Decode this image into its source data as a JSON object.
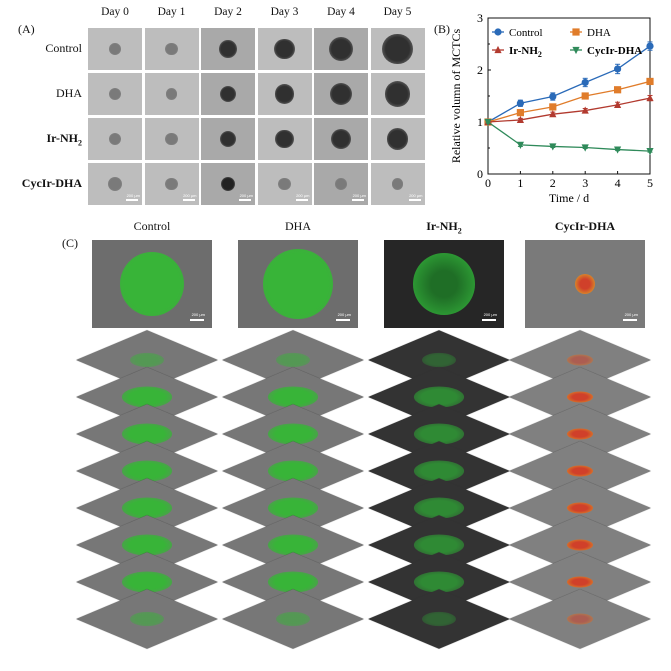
{
  "panel_a": {
    "label": "(A)",
    "days": [
      "Day 0",
      "Day 1",
      "Day 2",
      "Day 3",
      "Day 4",
      "Day 5"
    ],
    "rows": [
      "Control",
      "DHA",
      "Ir-NH",
      "CycIr-DHA"
    ],
    "row_sub": [
      "",
      "",
      "2",
      ""
    ],
    "scale_bar": "200 μm",
    "sizes": [
      [
        0.28,
        0.3,
        0.42,
        0.48,
        0.58,
        0.72
      ],
      [
        0.3,
        0.28,
        0.4,
        0.46,
        0.54,
        0.6
      ],
      [
        0.3,
        0.3,
        0.4,
        0.44,
        0.48,
        0.52
      ],
      [
        0.34,
        0.3,
        0.34,
        0.3,
        0.28,
        0.28
      ]
    ]
  },
  "panel_b": {
    "label": "(B)"
  },
  "chart_data": {
    "type": "line",
    "xlabel": "Time / d",
    "ylabel": "Relative volumn of MCTCs",
    "xlim": [
      0,
      5
    ],
    "ylim": [
      0,
      3
    ],
    "xticks": [
      "0",
      "1",
      "2",
      "3",
      "4",
      "5"
    ],
    "yticks": [
      "0",
      "1",
      "2",
      "3"
    ],
    "legend": "top-left",
    "x": [
      0,
      1,
      2,
      3,
      4,
      5
    ],
    "series": [
      {
        "name": "Control",
        "name_sub": "",
        "bold": false,
        "color": "#2a6ab8",
        "marker": "circle",
        "values": [
          1.0,
          1.36,
          1.49,
          1.76,
          2.02,
          2.46
        ],
        "err": [
          0.03,
          0.06,
          0.07,
          0.08,
          0.09,
          0.08
        ]
      },
      {
        "name": "DHA",
        "name_sub": "",
        "bold": false,
        "color": "#e07c2a",
        "marker": "square",
        "values": [
          1.0,
          1.18,
          1.29,
          1.5,
          1.62,
          1.78
        ],
        "err": [
          0.02,
          0.04,
          0.05,
          0.05,
          0.05,
          0.05
        ]
      },
      {
        "name": "Ir-NH",
        "name_sub": "2",
        "bold": true,
        "color": "#b23a2f",
        "marker": "triangle-up",
        "values": [
          1.0,
          1.04,
          1.15,
          1.22,
          1.33,
          1.46
        ],
        "err": [
          0.02,
          0.03,
          0.04,
          0.04,
          0.05,
          0.05
        ]
      },
      {
        "name": "CycIr-DHA",
        "name_sub": "",
        "bold": true,
        "color": "#2f8a5a",
        "marker": "triangle-down",
        "values": [
          1.0,
          0.56,
          0.53,
          0.51,
          0.47,
          0.44
        ],
        "err": [
          0.02,
          0.03,
          0.02,
          0.02,
          0.02,
          0.02
        ]
      }
    ]
  },
  "panel_c": {
    "label": "(C)",
    "columns": [
      {
        "name": "Control",
        "sub": "",
        "bold": false
      },
      {
        "name": "DHA",
        "sub": "",
        "bold": false
      },
      {
        "name": "Ir-NH",
        "sub": "2",
        "bold": true
      },
      {
        "name": "CycIr-DHA",
        "sub": "",
        "bold": true
      }
    ],
    "scale_bar": "200 μm",
    "colors": {
      "green": "#38b438",
      "orange": "#d98a2a",
      "red": "#d0402a",
      "gray": "#6b6b6b",
      "dark": "#2a2a2a"
    }
  }
}
